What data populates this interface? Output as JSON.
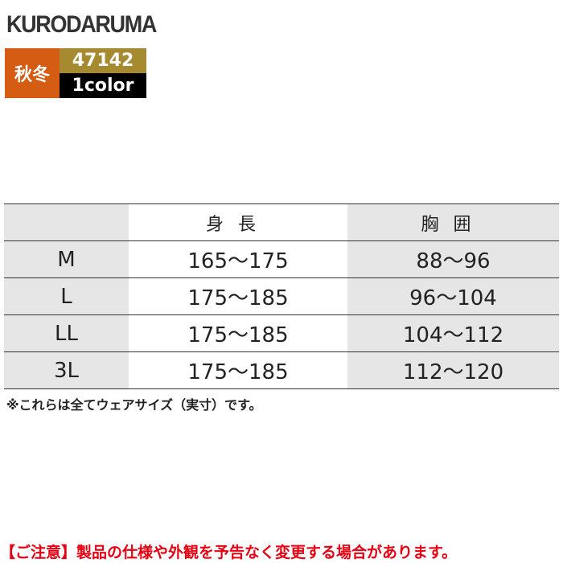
{
  "brand": "KURODARUMA",
  "season": "秋冬",
  "product_code": "47142",
  "colors": "1color",
  "table": {
    "headers": [
      "",
      "身長",
      "胸囲"
    ],
    "rows": [
      {
        "size": "M",
        "height": "165〜175",
        "chest": "88〜96"
      },
      {
        "size": "L",
        "height": "175〜185",
        "chest": "96〜104"
      },
      {
        "size": "LL",
        "height": "175〜185",
        "chest": "104〜112"
      },
      {
        "size": "3L",
        "height": "175〜185",
        "chest": "112〜120"
      }
    ]
  },
  "note": "※これらは全てウェアサイズ（実寸）です。",
  "caution": "【ご注意】製品の仕様や外観を予告なく変更する場合があります。"
}
